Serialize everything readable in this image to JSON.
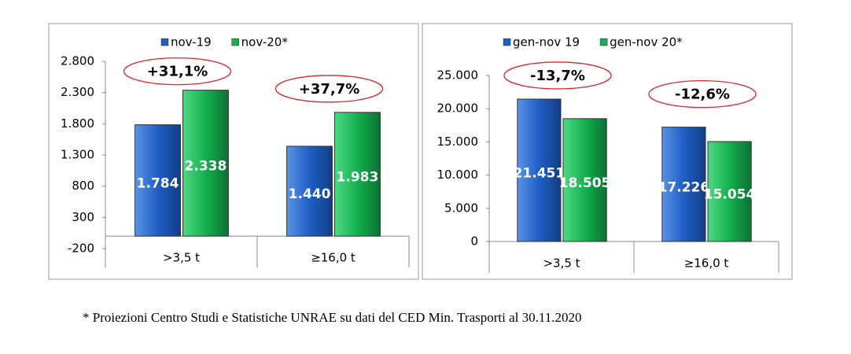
{
  "chart_data": [
    {
      "type": "bar",
      "categories": [
        ">3,5 t",
        "≥16,0 t"
      ],
      "series": [
        {
          "name": "nov-19",
          "color": "#1f5fc4",
          "values": [
            1784,
            1440
          ],
          "value_labels": [
            "1.784",
            "1.440"
          ]
        },
        {
          "name": "nov-20*",
          "color": "#14b04e",
          "values": [
            2338,
            1983
          ],
          "value_labels": [
            "2.338",
            "1.983"
          ]
        }
      ],
      "annotations": [
        "+31,1%",
        "+37,7%"
      ],
      "ylim": [
        -200,
        2800
      ],
      "yticks": [
        -200,
        300,
        800,
        {
          "value": 1300,
          "label": "1.300"
        },
        {
          "value": 1800,
          "label": "1.800"
        },
        {
          "value": 2300,
          "label": "2.300"
        },
        {
          "value": 2800,
          "label": "2.800"
        }
      ],
      "legend": "top"
    },
    {
      "type": "bar",
      "categories": [
        ">3,5 t",
        "≥16,0 t"
      ],
      "series": [
        {
          "name": "gen-nov 19",
          "color": "#1f5fc4",
          "values": [
            21451,
            17226
          ],
          "value_labels": [
            "21.451",
            "17.226"
          ]
        },
        {
          "name": "gen-nov 20*",
          "color": "#14b04e",
          "values": [
            18505,
            15054
          ],
          "value_labels": [
            "18.505",
            "15.054"
          ]
        }
      ],
      "annotations": [
        "-13,7%",
        "-12,6%"
      ],
      "ylim": [
        0,
        25000
      ],
      "yticks": [
        0,
        {
          "value": 5000,
          "label": "5.000"
        },
        {
          "value": 10000,
          "label": "10.000"
        },
        {
          "value": 15000,
          "label": "15.000"
        },
        {
          "value": 20000,
          "label": "20.000"
        },
        {
          "value": 25000,
          "label": "25.000"
        }
      ],
      "legend": "top"
    }
  ],
  "footnote": "* Proiezioni Centro Studi e Statistiche UNRAE su dati del CED Min. Trasporti al 30.11.2020"
}
